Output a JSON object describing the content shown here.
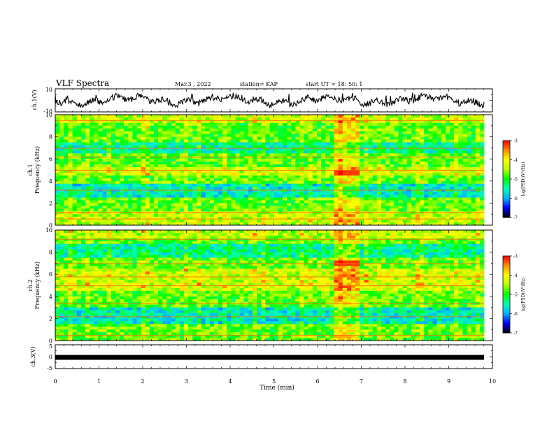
{
  "header": {
    "title": "VLF Spectra",
    "date": "Mar.3 , 2022",
    "station": "station= KAP",
    "start_time": "start UT = 18: 50: 1"
  },
  "chart_data": [
    {
      "type": "line",
      "panel": "ch1-waveform",
      "ylabel": "ch.1(V)",
      "ylim": [
        -10,
        10
      ],
      "y_ticks": [
        "10",
        "-10"
      ],
      "xlim": [
        0,
        10
      ]
    },
    {
      "type": "heatmap",
      "panel": "ch1-spectrogram",
      "ylabel_line1": "ch.1",
      "ylabel_line2": "Frequency (kHz)",
      "ylim": [
        0,
        10
      ],
      "y_ticks": [
        "0",
        "2",
        "4",
        "6",
        "8",
        "10"
      ],
      "xlim": [
        0,
        10
      ],
      "colorbar": {
        "label": "log(PSD)(V²/Hz)",
        "range": [
          -7,
          -3
        ],
        "ticks": [
          "-3",
          "-4",
          "-5",
          "-6",
          "-7"
        ]
      }
    },
    {
      "type": "heatmap",
      "panel": "ch2-spectrogram",
      "ylabel_line1": "ch.2",
      "ylabel_line2": "Frequency (kHz)",
      "ylim": [
        0,
        10
      ],
      "y_ticks": [
        "0",
        "2",
        "4",
        "6",
        "8",
        "10"
      ],
      "xlim": [
        0,
        10
      ],
      "colorbar": {
        "label": "log(PSD)(V²/Hz)",
        "range": [
          -7,
          -3
        ],
        "ticks": [
          "-3",
          "-4",
          "-5",
          "-6",
          "-7"
        ]
      }
    },
    {
      "type": "line",
      "panel": "ch3-waveform",
      "ylabel": "ch.3(V)",
      "ylim": [
        -5,
        5
      ],
      "y_ticks": [
        "5",
        "0",
        "-5"
      ],
      "xlim": [
        0,
        10
      ]
    }
  ],
  "x_axis": {
    "label": "Time (min)",
    "ticks": [
      "0",
      "1",
      "2",
      "3",
      "4",
      "5",
      "6",
      "7",
      "8",
      "9",
      "10"
    ]
  },
  "colors": {
    "scale": [
      "#000000",
      "#0000ff",
      "#00b4ff",
      "#00ffb4",
      "#00ff00",
      "#b4ff00",
      "#ffff00",
      "#ff8c00",
      "#ff0000",
      "#ffffff"
    ],
    "trace": "#000000"
  }
}
